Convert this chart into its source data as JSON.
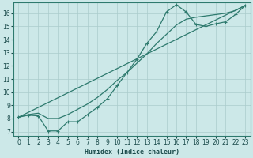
{
  "bg_color": "#cce8e8",
  "grid_color": "#aacccc",
  "line_color": "#2e7a6e",
  "xlabel": "Humidex (Indice chaleur)",
  "xlim": [
    -0.5,
    23.5
  ],
  "ylim": [
    6.7,
    16.8
  ],
  "yticks": [
    7,
    8,
    9,
    10,
    11,
    12,
    13,
    14,
    15,
    16
  ],
  "xticks": [
    0,
    1,
    2,
    3,
    4,
    5,
    6,
    7,
    8,
    9,
    10,
    11,
    12,
    13,
    14,
    15,
    16,
    17,
    18,
    19,
    20,
    21,
    22,
    23
  ],
  "line1_x": [
    0,
    1,
    2,
    3,
    4,
    5,
    6,
    7,
    8,
    9,
    10,
    11,
    12,
    13,
    14,
    15,
    16,
    17,
    18,
    19,
    20,
    21,
    22,
    23
  ],
  "line1_y": [
    8.1,
    8.25,
    8.2,
    7.05,
    7.05,
    7.75,
    7.75,
    8.3,
    8.85,
    9.5,
    10.5,
    11.5,
    12.5,
    13.7,
    14.6,
    16.1,
    16.65,
    16.1,
    15.15,
    15.0,
    15.2,
    15.35,
    15.9,
    16.6
  ],
  "line2_x": [
    0,
    1,
    2,
    3,
    4,
    5,
    6,
    7,
    8,
    9,
    10,
    11,
    12,
    13,
    14,
    15,
    16,
    17,
    18,
    19,
    20,
    21,
    22,
    23
  ],
  "line2_y": [
    8.1,
    8.3,
    8.4,
    8.0,
    8.0,
    8.3,
    8.7,
    9.1,
    9.6,
    10.2,
    10.9,
    11.5,
    12.2,
    12.9,
    13.7,
    14.4,
    15.1,
    15.55,
    15.7,
    15.8,
    15.9,
    16.0,
    16.2,
    16.6
  ],
  "line3_x": [
    0,
    23
  ],
  "line3_y": [
    8.1,
    16.6
  ]
}
